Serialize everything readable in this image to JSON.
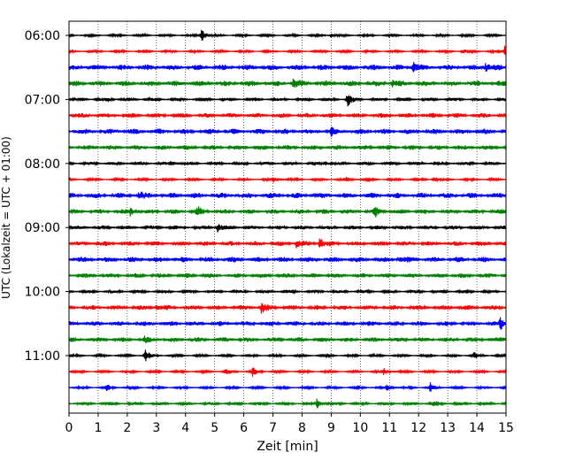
{
  "chart_data": {
    "type": "line",
    "title": "",
    "xlabel": "Zeit  [min]",
    "ylabel": "UTC (Lokalzeit = UTC + 01:00)",
    "xlim": [
      0,
      15
    ],
    "x_ticks": [
      0,
      1,
      2,
      3,
      4,
      5,
      6,
      7,
      8,
      9,
      10,
      11,
      12,
      13,
      14,
      15
    ],
    "y_ticks": [
      "06:00",
      "07:00",
      "08:00",
      "09:00",
      "10:00",
      "11:00"
    ],
    "grid": "vertical dotted",
    "trace_minutes": 15,
    "color_cycle": [
      "#000000",
      "#ff0000",
      "#0000ff",
      "#008000"
    ],
    "traces": [
      {
        "start": "06:00",
        "color": "#000000",
        "amplitude": 0.15,
        "events": [
          [
            4.55,
            1.0
          ],
          [
            9.0,
            0.25
          ]
        ]
      },
      {
        "start": "06:15",
        "color": "#ff0000",
        "amplitude": 0.15,
        "events": [
          [
            14.95,
            1.0
          ],
          [
            13.5,
            0.3
          ]
        ]
      },
      {
        "start": "06:30",
        "color": "#0000ff",
        "amplitude": 0.35,
        "events": [
          [
            11.8,
            0.8
          ],
          [
            14.3,
            0.7
          ]
        ]
      },
      {
        "start": "06:45",
        "color": "#008000",
        "amplitude": 0.35,
        "events": [
          [
            7.7,
            0.6
          ],
          [
            11.1,
            0.5
          ]
        ]
      },
      {
        "start": "07:00",
        "color": "#000000",
        "amplitude": 0.2,
        "events": [
          [
            9.55,
            1.0
          ],
          [
            1.3,
            0.3
          ]
        ]
      },
      {
        "start": "07:15",
        "color": "#ff0000",
        "amplitude": 0.3,
        "events": []
      },
      {
        "start": "07:30",
        "color": "#0000ff",
        "amplitude": 0.35,
        "events": [
          [
            9.0,
            0.4
          ]
        ]
      },
      {
        "start": "07:45",
        "color": "#008000",
        "amplitude": 0.3,
        "events": []
      },
      {
        "start": "08:00",
        "color": "#000000",
        "amplitude": 0.2,
        "events": [
          [
            3.5,
            0.3
          ],
          [
            8.8,
            0.3
          ]
        ]
      },
      {
        "start": "08:15",
        "color": "#ff0000",
        "amplitude": 0.15,
        "events": [
          [
            7.0,
            0.4
          ],
          [
            9.5,
            0.3
          ],
          [
            12.5,
            0.3
          ]
        ]
      },
      {
        "start": "08:30",
        "color": "#0000ff",
        "amplitude": 0.35,
        "events": [
          [
            2.4,
            0.5
          ]
        ]
      },
      {
        "start": "08:45",
        "color": "#008000",
        "amplitude": 0.3,
        "events": [
          [
            2.1,
            0.5
          ],
          [
            4.4,
            0.6
          ],
          [
            10.5,
            0.6
          ]
        ]
      },
      {
        "start": "09:00",
        "color": "#000000",
        "amplitude": 0.25,
        "events": [
          [
            5.1,
            0.6
          ]
        ]
      },
      {
        "start": "09:15",
        "color": "#ff0000",
        "amplitude": 0.3,
        "events": [
          [
            8.6,
            0.8
          ],
          [
            7.8,
            0.5
          ]
        ]
      },
      {
        "start": "09:30",
        "color": "#0000ff",
        "amplitude": 0.35,
        "events": [
          [
            11.3,
            0.3
          ]
        ]
      },
      {
        "start": "09:45",
        "color": "#008000",
        "amplitude": 0.3,
        "events": []
      },
      {
        "start": "10:00",
        "color": "#000000",
        "amplitude": 0.2,
        "events": []
      },
      {
        "start": "10:15",
        "color": "#ff0000",
        "amplitude": 0.3,
        "events": [
          [
            3.0,
            0.5
          ],
          [
            6.6,
            0.8
          ]
        ]
      },
      {
        "start": "10:30",
        "color": "#0000ff",
        "amplitude": 0.3,
        "events": [
          [
            14.8,
            1.0
          ]
        ]
      },
      {
        "start": "10:45",
        "color": "#008000",
        "amplitude": 0.3,
        "events": [
          [
            2.6,
            0.3
          ]
        ]
      },
      {
        "start": "11:00",
        "color": "#000000",
        "amplitude": 0.15,
        "events": [
          [
            2.6,
            1.0
          ],
          [
            13.9,
            0.4
          ]
        ]
      },
      {
        "start": "11:15",
        "color": "#ff0000",
        "amplitude": 0.15,
        "events": [
          [
            6.3,
            0.6
          ],
          [
            10.8,
            0.5
          ],
          [
            5.4,
            0.3
          ]
        ]
      },
      {
        "start": "11:30",
        "color": "#0000ff",
        "amplitude": 0.15,
        "events": [
          [
            1.3,
            0.4
          ],
          [
            10.9,
            0.4
          ],
          [
            12.4,
            0.6
          ]
        ]
      },
      {
        "start": "11:45",
        "color": "#008000",
        "amplitude": 0.2,
        "events": [
          [
            8.5,
            0.6
          ],
          [
            12.5,
            0.4
          ]
        ]
      }
    ]
  }
}
